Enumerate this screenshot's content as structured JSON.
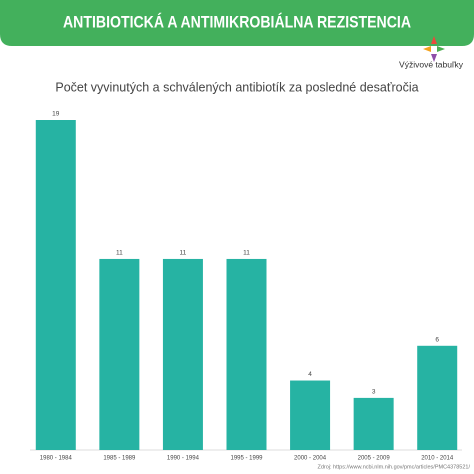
{
  "brand": "Výživové tabuľky",
  "chart_data": {
    "type": "bar",
    "title": "ANTIBIOTICKÁ A ANTIMIKROBIÁLNA REZISTENCIA",
    "subtitle": "Počet vyvinutých a schválených antibiotík za posledné desaťročia",
    "categories": [
      "1980 - 1984",
      "1985 - 1989",
      "1990 - 1994",
      "1995 - 1999",
      "2000 - 2004",
      "2005 - 2009",
      "2010 - 2014"
    ],
    "values": [
      19,
      11,
      11,
      11,
      4,
      3,
      6
    ],
    "color": "#26b3a3",
    "source": "Zdroj: https://www.ncbi.nlm.nih.gov/pmc/articles/PMC4378521/"
  }
}
